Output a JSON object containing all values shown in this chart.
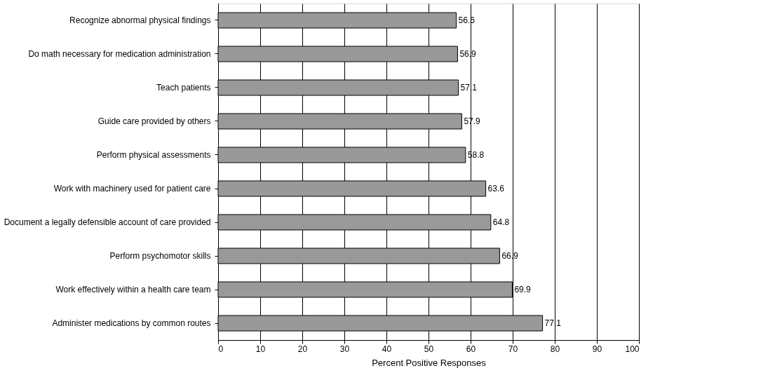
{
  "chart_data": {
    "type": "bar",
    "orientation": "horizontal",
    "xlabel": "Percent Positive Responses",
    "categories": [
      "Recognize abnormal physical findings",
      "Do math necessary for medication administration",
      "Teach patients",
      "Guide care provided by others",
      "Perform physical assessments",
      "Work with machinery used for patient care",
      "Document a legally defensible account of care provided",
      "Perform psychomotor skills",
      "Work effectively within a health care team",
      "Administer medications by common routes"
    ],
    "values": [
      56.6,
      56.9,
      57.1,
      57.9,
      58.8,
      63.6,
      64.8,
      66.9,
      69.9,
      77.1
    ],
    "color": "#999999",
    "xlim": [
      0,
      100
    ],
    "xticks": [
      0,
      10,
      20,
      30,
      40,
      50,
      60,
      70,
      80,
      90,
      100
    ],
    "grid": "x",
    "data_labels": true
  }
}
